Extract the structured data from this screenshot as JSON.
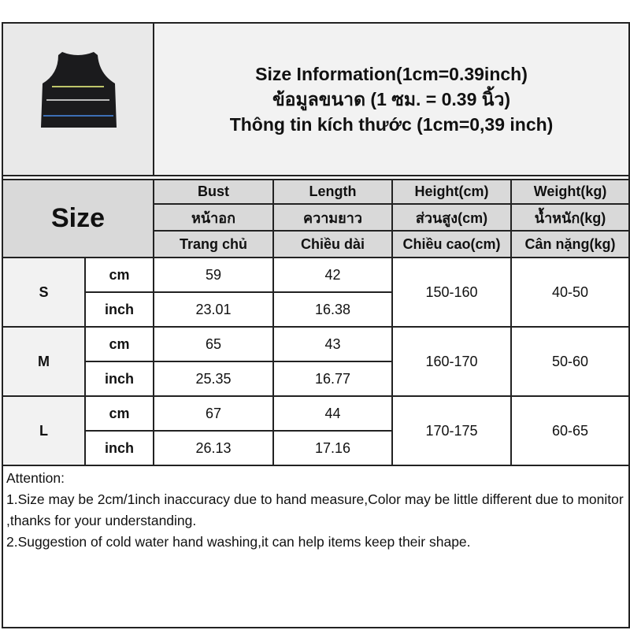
{
  "title": {
    "lines": [
      "Size Information(1cm=0.39inch)",
      "ข้อมูลขนาด (1 ซม. = 0.39 นิ้ว)",
      "Thông tin kích thước (1cm=0,39 inch)"
    ]
  },
  "product_image": "black-ribbed-crop-tank-top-with-stripes",
  "header": {
    "size_label": "Size",
    "columns": [
      [
        "Bust",
        "หน้าอก",
        "Trang chủ"
      ],
      [
        "Length",
        "ความยาว",
        "Chiều dài"
      ],
      [
        "Height(cm)",
        "ส่วนสูง(cm)",
        "Chiều cao(cm)"
      ],
      [
        "Weight(kg)",
        "น้ำหนัก(kg)",
        "Cân nặng(kg)"
      ]
    ]
  },
  "rows": [
    {
      "size": "S",
      "cm": {
        "unit": "cm",
        "bust": "59",
        "length": "42"
      },
      "inch": {
        "unit": "inch",
        "bust": "23.01",
        "length": "16.38"
      },
      "height": "150-160",
      "weight": "40-50"
    },
    {
      "size": "M",
      "cm": {
        "unit": "cm",
        "bust": "65",
        "length": "43"
      },
      "inch": {
        "unit": "inch",
        "bust": "25.35",
        "length": "16.77"
      },
      "height": "160-170",
      "weight": "50-60"
    },
    {
      "size": "L",
      "cm": {
        "unit": "cm",
        "bust": "67",
        "length": "44"
      },
      "inch": {
        "unit": "inch",
        "bust": "26.13",
        "length": "17.16"
      },
      "height": "170-175",
      "weight": "60-65"
    }
  ],
  "notes": {
    "heading": "Attention:",
    "items": [
      "1.Size may be 2cm/1inch inaccuracy due to hand measure,Color may be little different due to monitor ,thanks for your understanding.",
      "2.Suggestion of cold water hand washing,it can help items keep their shape."
    ]
  }
}
